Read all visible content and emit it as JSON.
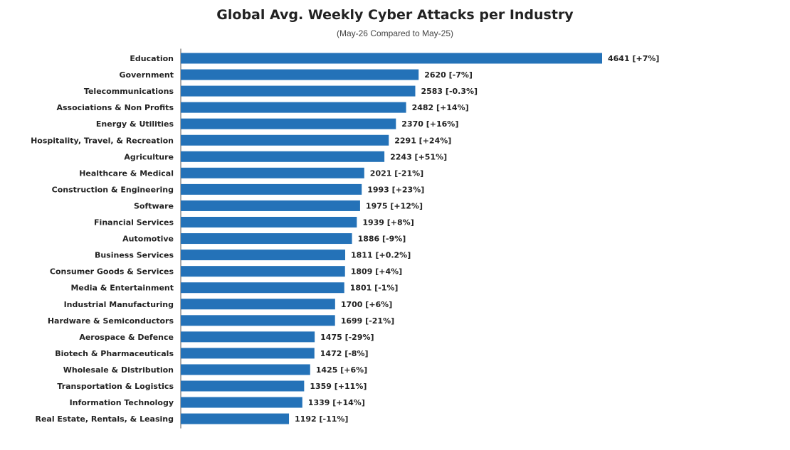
{
  "chart_data": {
    "type": "bar",
    "orientation": "horizontal",
    "title": "Global Avg. Weekly Cyber Attacks per Industry",
    "subtitle": "(May-26 Compared to May-25)",
    "xlabel": "",
    "ylabel": "",
    "grid": false,
    "legend": "none",
    "bar_color": "#2472b8",
    "categories": [
      "Education",
      "Government",
      "Telecommunications",
      "Associations & Non Profits",
      "Energy & Utilities",
      "Hospitality, Travel, & Recreation",
      "Agriculture",
      "Healthcare & Medical",
      "Construction & Engineering",
      "Software",
      "Financial Services",
      "Automotive",
      "Business Services",
      "Consumer Goods & Services",
      "Media & Entertainment",
      "Industrial Manufacturing",
      "Hardware & Semiconductors",
      "Aerospace & Defence",
      "Biotech & Pharmaceuticals",
      "Wholesale & Distribution",
      "Transportation & Logistics",
      "Information Technology",
      "Real Estate, Rentals, & Leasing"
    ],
    "values": [
      4641,
      2620,
      2583,
      2482,
      2370,
      2291,
      2243,
      2021,
      1993,
      1975,
      1939,
      1886,
      1811,
      1809,
      1801,
      1700,
      1699,
      1475,
      1472,
      1425,
      1359,
      1339,
      1192
    ],
    "changes": [
      "+7%",
      "-7%",
      "-0.3%",
      "+14%",
      "+16%",
      "+24%",
      "+51%",
      "-21%",
      "+23%",
      "+12%",
      "+8%",
      "-9%",
      "+0.2%",
      "+4%",
      "-1%",
      "+6%",
      "-21%",
      "-29%",
      "-8%",
      "+6%",
      "+11%",
      "+14%",
      "-11%"
    ],
    "data_labels": [
      "4641 [+7%]",
      "2620 [-7%]",
      "2583 [-0.3%]",
      "2482 [+14%]",
      "2370 [+16%]",
      "2291 [+24%]",
      "2243 [+51%]",
      "2021 [-21%]",
      "1993 [+23%]",
      "1975 [+12%]",
      "1939 [+8%]",
      "1886 [-9%]",
      "1811 [+0.2%]",
      "1809 [+4%]",
      "1801 [-1%]",
      "1700 [+6%]",
      "1699 [-21%]",
      "1475 [-29%]",
      "1472 [-8%]",
      "1425 [+6%]",
      "1359 [+11%]",
      "1339 [+14%]",
      "1192 [-11%]"
    ]
  }
}
